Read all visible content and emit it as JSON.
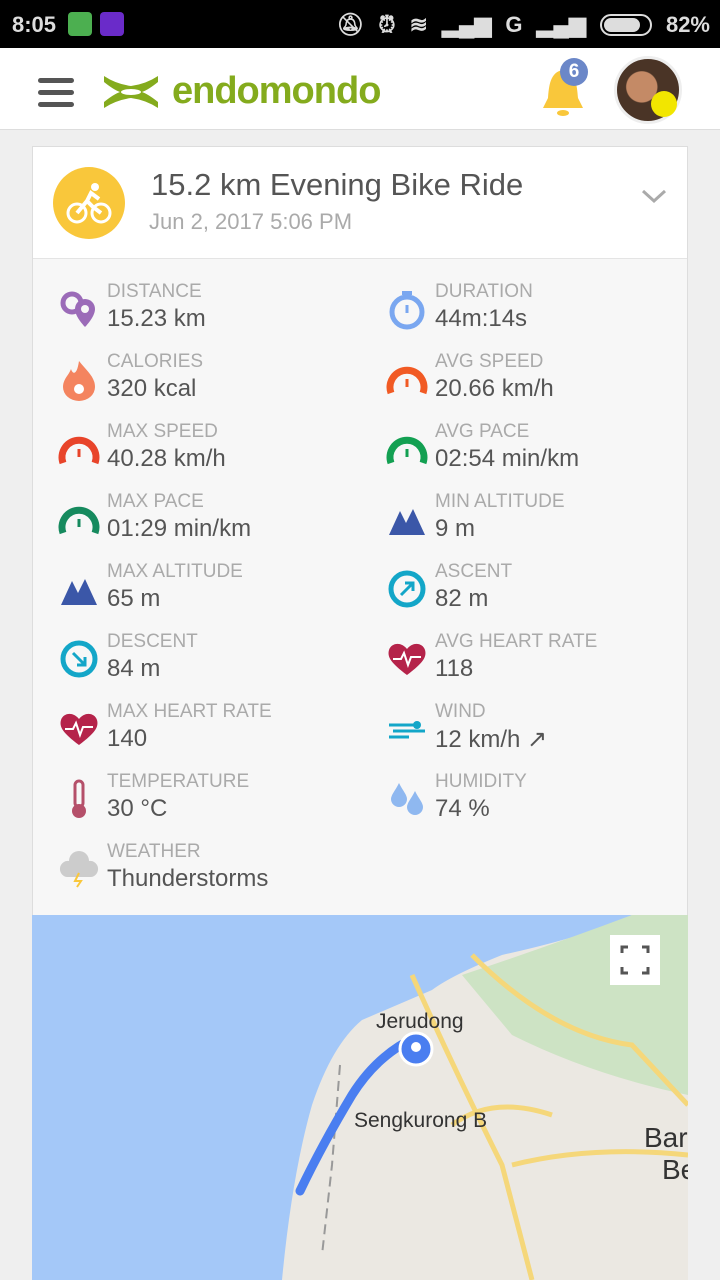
{
  "status_bar": {
    "time": "8:05",
    "network": "G",
    "battery": "82%"
  },
  "header": {
    "brand": "endomondo",
    "notifications_count": "6"
  },
  "workout": {
    "title": "15.2 km Evening Bike Ride",
    "date": "Jun 2, 2017 5:06 PM"
  },
  "stats": [
    {
      "label": "DISTANCE",
      "value": "15.23 km",
      "icon": "distance-pins-icon",
      "color": "#9b6bb8"
    },
    {
      "label": "DURATION",
      "value": "44m:14s",
      "icon": "stopwatch-icon",
      "color": "#7aa7f0"
    },
    {
      "label": "CALORIES",
      "value": "320 kcal",
      "icon": "flame-icon",
      "color": "#f4845f"
    },
    {
      "label": "AVG SPEED",
      "value": "20.66 km/h",
      "icon": "speedometer-icon",
      "color": "#f15a24"
    },
    {
      "label": "MAX SPEED",
      "value": "40.28 km/h",
      "icon": "speedometer-icon",
      "color": "#e8442a"
    },
    {
      "label": "AVG PACE",
      "value": "02:54 min/km",
      "icon": "pace-gauge-icon",
      "color": "#13a052"
    },
    {
      "label": "MAX PACE",
      "value": "01:29 min/km",
      "icon": "pace-gauge-icon",
      "color": "#168a5e"
    },
    {
      "label": "MIN ALTITUDE",
      "value": "9 m",
      "icon": "mountain-icon",
      "color": "#3b57a8"
    },
    {
      "label": "MAX ALTITUDE",
      "value": "65 m",
      "icon": "mountain-icon",
      "color": "#3b57a8"
    },
    {
      "label": "ASCENT",
      "value": "82 m",
      "icon": "ascent-icon",
      "color": "#13a6c8"
    },
    {
      "label": "DESCENT",
      "value": "84 m",
      "icon": "descent-icon",
      "color": "#13a6c8"
    },
    {
      "label": "AVG HEART RATE",
      "value": "118",
      "icon": "heart-rate-icon",
      "color": "#b5234a"
    },
    {
      "label": "MAX HEART RATE",
      "value": "140",
      "icon": "heart-rate-icon",
      "color": "#b5234a"
    },
    {
      "label": "WIND",
      "value": "12 km/h ↗",
      "icon": "wind-icon",
      "color": "#13a6c8"
    },
    {
      "label": "TEMPERATURE",
      "value": "30 °C",
      "icon": "thermometer-icon",
      "color": "#b5506a"
    },
    {
      "label": "HUMIDITY",
      "value": "74 %",
      "icon": "water-drops-icon",
      "color": "#8fb8f0"
    },
    {
      "label": "WEATHER",
      "value": "Thunderstorms",
      "icon": "thunderstorm-cloud-icon",
      "color": "#ccc"
    }
  ],
  "map": {
    "labels": [
      "Jerudong",
      "Sengkurong B",
      "Bar",
      "Be"
    ],
    "route_color": "#4a7ef0"
  }
}
